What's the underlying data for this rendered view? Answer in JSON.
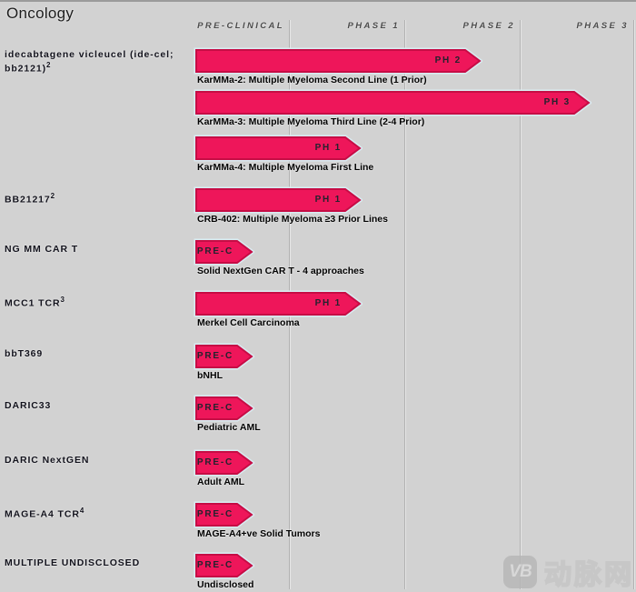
{
  "title": "Oncology",
  "colors": {
    "background": "#d2d2d2",
    "bar_fill": "#ee165a",
    "bar_border": "#c60d45",
    "bar_halo": "#d9ecf2",
    "gridline": "#b2b2b2",
    "header_text": "#4b4b4b"
  },
  "watermark": {
    "logo": "VB",
    "text": "动脉网"
  },
  "chart_data": {
    "type": "bar",
    "title": "Oncology",
    "orientation": "horizontal-pipeline",
    "columns": [
      "PRE-CLINICAL",
      "PHASE 1",
      "PHASE 2",
      "PHASE 3"
    ],
    "rows": [
      {
        "program": "idecabtagene vicleucel (ide-cel;\nbb2121)",
        "footnote": "2",
        "phase": "PH 2",
        "trial": "KarMMa-2: Multiple Myeloma Second Line (1 Prior)"
      },
      {
        "program": "",
        "footnote": "",
        "phase": "PH 3",
        "trial": "KarMMa-3: Multiple Myeloma Third Line (2-4 Prior)"
      },
      {
        "program": "",
        "footnote": "",
        "phase": "PH 1",
        "trial": "KarMMa-4: Multiple Myeloma First Line"
      },
      {
        "program": "BB21217",
        "footnote": "2",
        "phase": "PH 1",
        "trial": "CRB-402: Multiple Myeloma ≥3 Prior Lines"
      },
      {
        "program": "NG MM CAR T",
        "footnote": "",
        "phase": "PRE-C",
        "trial": "Solid NextGen CAR T - 4 approaches"
      },
      {
        "program": "MCC1 TCR",
        "footnote": "3",
        "phase": "PH 1",
        "trial": "Merkel Cell Carcinoma"
      },
      {
        "program": "bbT369",
        "footnote": "",
        "phase": "PRE-C",
        "trial": "bNHL"
      },
      {
        "program": "DARIC33",
        "footnote": "",
        "phase": "PRE-C",
        "trial": "Pediatric AML"
      },
      {
        "program": "DARIC NextGEN",
        "footnote": "",
        "phase": "PRE-C",
        "trial": "Adult AML"
      },
      {
        "program": "MAGE-A4 TCR",
        "footnote": "4",
        "phase": "PRE-C",
        "trial": "MAGE-A4+ve Solid Tumors"
      },
      {
        "program": "MULTIPLE UNDISCLOSED",
        "footnote": "",
        "phase": "PRE-C",
        "trial": "Undisclosed"
      }
    ]
  }
}
